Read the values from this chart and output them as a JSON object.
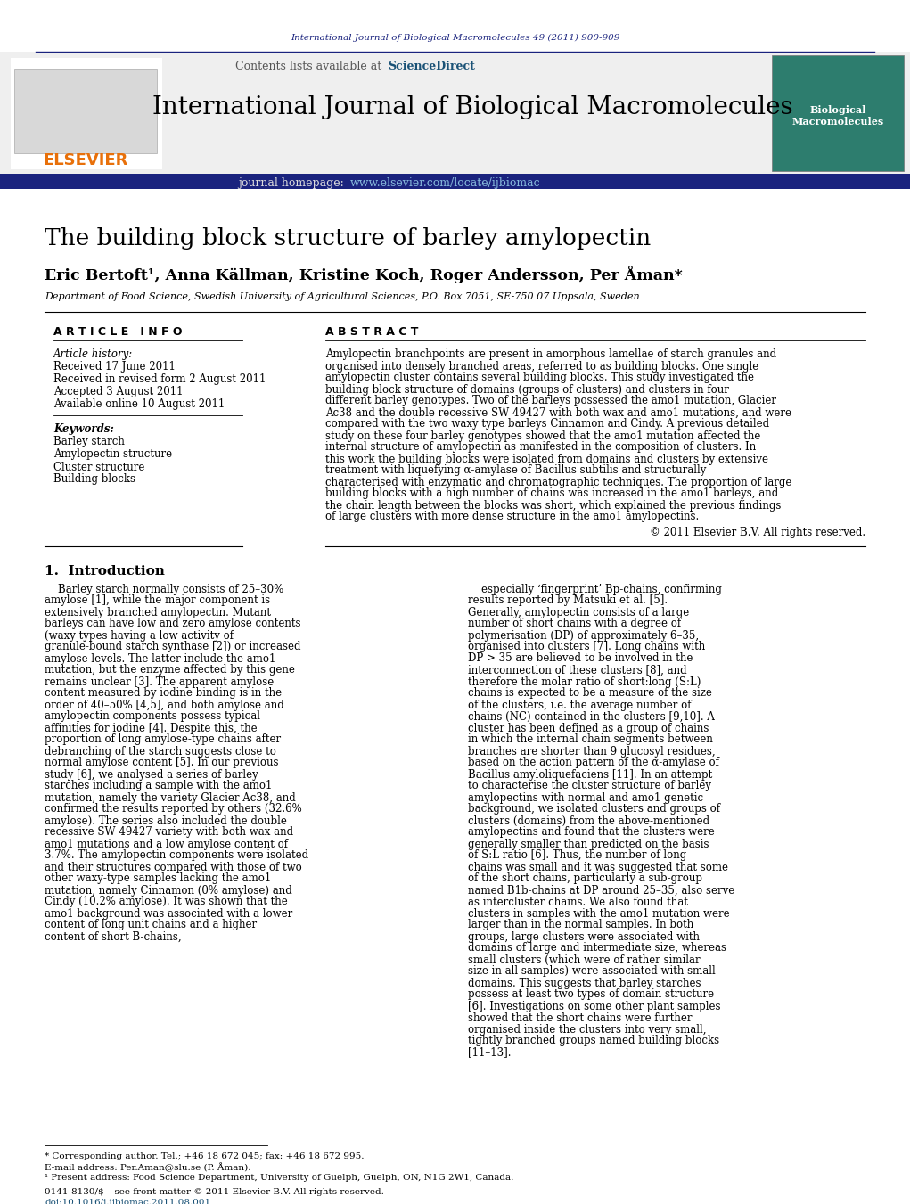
{
  "journal_ref": "International Journal of Biological Macromolecules 49 (2011) 900-909",
  "journal_name": "International Journal of Biological Macromolecules",
  "homepage_url": "www.elsevier.com/locate/ijbiomac",
  "title": "The building block structure of barley amylopectin",
  "authors": "Eric Bertoft¹, Anna Källman, Kristine Koch, Roger Andersson, Per Åman*",
  "affiliation": "Department of Food Science, Swedish University of Agricultural Sciences, P.O. Box 7051, SE-750 07 Uppsala, Sweden",
  "article_history_label": "Article history:",
  "received": "Received 17 June 2011",
  "received_revised": "Received in revised form 2 August 2011",
  "accepted": "Accepted 3 August 2011",
  "available": "Available online 10 August 2011",
  "keywords_label": "Keywords:",
  "keywords": [
    "Barley starch",
    "Amylopectin structure",
    "Cluster structure",
    "Building blocks"
  ],
  "abstract_text": "Amylopectin branchpoints are present in amorphous lamellae of starch granules and organised into densely branched areas, referred to as building blocks. One single amylopectin cluster contains several building blocks. This study investigated the building block structure of domains (groups of clusters) and clusters in four different barley genotypes. Two of the barleys possessed the amo1 mutation, Glacier Ac38 and the double recessive SW 49427 with both wax and amo1 mutations, and were compared with the two waxy type barleys Cinnamon and Cindy. A previous detailed study on these four barley genotypes showed that the amo1 mutation affected the internal structure of amylopectin as manifested in the composition of clusters. In this work the building blocks were isolated from domains and clusters by extensive treatment with liquefying α-amylase of Bacillus subtilis and structurally characterised with enzymatic and chromatographic techniques. The proportion of large building blocks with a high number of chains was increased in the amo1 barleys, and the chain length between the blocks was short, which explained the previous findings of large clusters with more dense structure in the amo1 amylopectins.",
  "copyright": "© 2011 Elsevier B.V. All rights reserved.",
  "intro_header": "1.  Introduction",
  "intro_col1": "Barley starch normally consists of 25–30% amylose [1], while the major component is extensively branched amylopectin. Mutant barleys can have low and zero amylose contents (waxy types having a low activity of granule-bound starch synthase [2]) or increased amylose levels. The latter include the amo1 mutation, but the enzyme affected by this gene remains unclear [3]. The apparent amylose content measured by iodine binding is in the order of 40–50% [4,5], and both amylose and amylopectin components possess typical affinities for iodine [4]. Despite this, the proportion of long amylose-type chains after debranching of the starch suggests close to normal amylose content [5]. In our previous study [6], we analysed a series of barley starches including a sample with the amo1 mutation, namely the variety Glacier Ac38, and confirmed the results reported by others (32.6% amylose). The series also included the double recessive SW 49427 variety with both wax and amo1 mutations and a low amylose content of 3.7%. The amylopectin components were isolated and their structures compared with those of two other waxy-type samples lacking the amo1 mutation, namely Cinnamon (0% amylose) and Cindy (10.2% amylose). It was shown that the amo1 background was associated with a lower content of long unit chains and a higher content of short B-chains,",
  "intro_col2": "especially ‘fingerprint’ Bp-chains, confirming results reported by Matsuki et al. [5]. Generally, amylopectin consists of a large number of short chains with a degree of polymerisation (DP) of approximately 6–35, organised into clusters [7]. Long chains with DP > 35 are believed to be involved in the interconnection of these clusters [8], and therefore the molar ratio of short:long (S:L) chains is expected to be a measure of the size of the clusters, i.e. the average number of chains (NC) contained in the clusters [9,10]. A cluster has been defined as a group of chains in which the internal chain segments between branches are shorter than 9 glucosyl residues, based on the action pattern of the α-amylase of Bacillus amyloliquefaciens [11]. In an attempt to characterise the cluster structure of barley amylopectins with normal and amo1 genetic background, we isolated clusters and groups of clusters (domains) from the above-mentioned amylopectins and found that the clusters were generally smaller than predicted on the basis of S:L ratio [6]. Thus, the number of long chains was small and it was suggested that some of the short chains, particularly a sub-group named B1b-chains at DP around 25–35, also serve as intercluster chains. We also found that clusters in samples with the amo1 mutation were larger than in the normal samples. In both groups, large clusters were associated with domains of large and intermediate size, whereas small clusters (which were of rather similar size in all samples) were associated with small domains. This suggests that barley starches possess at least two types of domain structure [6]. Investigations on some other plant samples showed that the short chains were further organised inside the clusters into very small, tightly branched groups named building blocks [11–13].",
  "footnote1": "* Corresponding author. Tel.; +46 18 672 045; fax: +46 18 672 995.",
  "footnote2": "E-mail address: Per.Aman@slu.se (P. Åman).",
  "footnote3": "¹ Present address: Food Science Department, University of Guelph, Guelph, ON, N1G 2W1, Canada.",
  "issn_line": "0141-8130/$ – see front matter © 2011 Elsevier B.V. All rights reserved.",
  "doi_line": "doi:10.1016/j.ijbiomac.2011.08.001",
  "link_color": "#1a5276",
  "elsevier_orange": "#e8700a",
  "navy": "#1a237e"
}
